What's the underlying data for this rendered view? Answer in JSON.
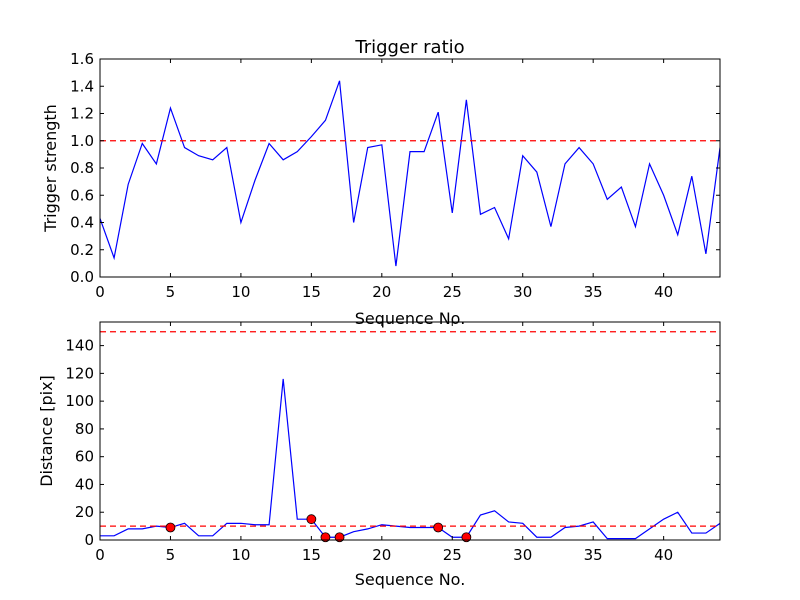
{
  "chart_data": [
    {
      "type": "line",
      "title": "Trigger ratio",
      "xlabel": "Sequence No.",
      "ylabel": "Trigger strength",
      "xlim": [
        0,
        44
      ],
      "ylim": [
        0.0,
        1.6
      ],
      "x_ticks": [
        "0",
        "5",
        "10",
        "15",
        "20",
        "25",
        "30",
        "35",
        "40"
      ],
      "y_ticks": [
        "0.0",
        "0.2",
        "0.4",
        "0.6",
        "0.8",
        "1.0",
        "1.2",
        "1.4",
        "1.6"
      ],
      "grid": false,
      "series": [
        {
          "color": "#0000ff",
          "x": [
            0,
            1,
            2,
            3,
            4,
            5,
            6,
            7,
            8,
            9,
            10,
            11,
            12,
            13,
            14,
            15,
            16,
            17,
            18,
            19,
            20,
            21,
            22,
            23,
            24,
            25,
            26,
            27,
            28,
            29,
            30,
            31,
            32,
            33,
            34,
            35,
            36,
            37,
            38,
            39,
            40,
            41,
            42,
            43,
            44
          ],
          "values": [
            0.43,
            0.14,
            0.68,
            0.98,
            0.83,
            1.24,
            0.95,
            0.89,
            0.86,
            0.95,
            0.4,
            0.71,
            0.98,
            0.86,
            0.92,
            1.03,
            1.15,
            1.44,
            0.4,
            0.95,
            0.97,
            0.08,
            0.92,
            0.92,
            1.21,
            0.47,
            1.3,
            0.46,
            0.51,
            0.28,
            0.89,
            0.77,
            0.37,
            0.83,
            0.95,
            0.83,
            0.57,
            0.66,
            0.37,
            0.83,
            0.6,
            0.31,
            0.74,
            0.17,
            0.95
          ]
        }
      ],
      "hlines": [
        {
          "y": 1.0,
          "color": "#ff0000",
          "style": "dashed"
        }
      ]
    },
    {
      "type": "line",
      "title": "",
      "xlabel": "Sequence No.",
      "ylabel": "Distance [pix]",
      "xlim": [
        0,
        44
      ],
      "ylim": [
        0,
        157
      ],
      "x_ticks": [
        "0",
        "5",
        "10",
        "15",
        "20",
        "25",
        "30",
        "35",
        "40"
      ],
      "y_ticks": [
        "0",
        "20",
        "40",
        "60",
        "80",
        "100",
        "120",
        "140"
      ],
      "grid": false,
      "series": [
        {
          "color": "#0000ff",
          "x": [
            0,
            1,
            2,
            3,
            4,
            5,
            6,
            7,
            8,
            9,
            10,
            11,
            12,
            13,
            14,
            15,
            16,
            17,
            18,
            19,
            20,
            21,
            22,
            23,
            24,
            25,
            26,
            27,
            28,
            29,
            30,
            31,
            32,
            33,
            34,
            35,
            36,
            37,
            38,
            39,
            40,
            41,
            42,
            43,
            44
          ],
          "values": [
            3,
            3,
            8,
            8,
            10,
            9,
            12,
            3,
            3,
            12,
            12,
            11,
            11,
            116,
            15,
            15,
            2,
            2,
            6,
            8,
            11,
            10,
            9,
            9,
            9,
            2,
            2,
            18,
            21,
            13,
            12,
            2,
            2,
            9,
            10,
            13,
            1,
            1,
            1,
            8,
            15,
            20,
            5,
            5,
            12
          ]
        }
      ],
      "markers": {
        "color": "#ff0000",
        "x": [
          5,
          15,
          16,
          17,
          24,
          26
        ],
        "y": [
          9,
          15,
          2,
          2,
          9,
          2
        ]
      },
      "hlines": [
        {
          "y": 10,
          "color": "#ff0000",
          "style": "dashed"
        },
        {
          "y": 150,
          "color": "#ff0000",
          "style": "dashed"
        }
      ]
    }
  ]
}
